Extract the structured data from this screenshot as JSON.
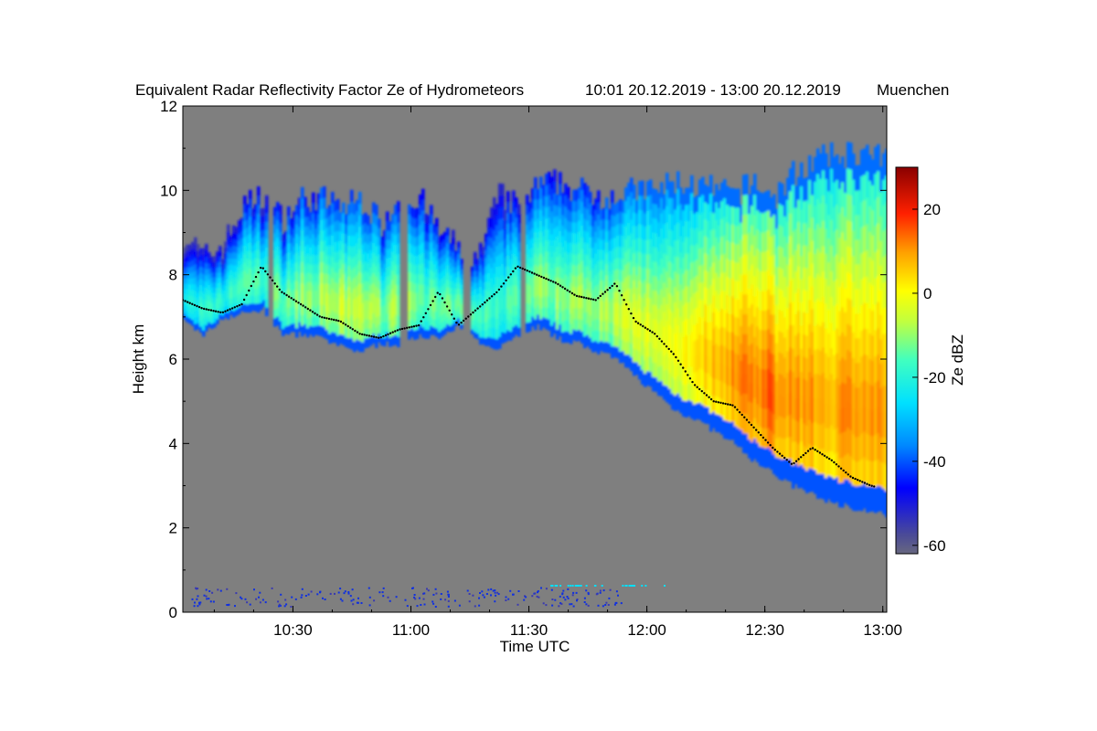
{
  "chart_data": {
    "type": "heatmap",
    "title": "Equivalent Radar Reflectivity Factor Ze of Hydrometeors",
    "time_range_label": "10:01 20.12.2019 - 13:00 20.12.2019",
    "location": "Muenchen",
    "xlabel": "Time UTC",
    "ylabel": "Height km",
    "x_ticks": [
      "10:30",
      "11:00",
      "11:30",
      "12:00",
      "12:30",
      "13:00"
    ],
    "x_tick_minutes": [
      629,
      659,
      689,
      719,
      749,
      779
    ],
    "xlim_minutes": [
      601,
      780
    ],
    "y_ticks": [
      "0",
      "2",
      "4",
      "6",
      "8",
      "10",
      "12"
    ],
    "y_tick_values": [
      0,
      2,
      4,
      6,
      8,
      10,
      12
    ],
    "ylim": [
      0,
      12
    ],
    "colorbar": {
      "label": "Ze dBZ",
      "ticks": [
        "20",
        "0",
        "-20",
        "-40",
        "-60"
      ],
      "tick_values": [
        20,
        0,
        -20,
        -40,
        -60
      ],
      "range": [
        -62,
        30
      ]
    },
    "cloud_profile_sample": {
      "time_minutes": [
        601,
        606,
        611,
        616,
        621,
        626,
        631,
        636,
        641,
        646,
        651,
        656,
        661,
        666,
        671,
        676,
        681,
        686,
        691,
        696,
        701,
        706,
        711,
        716,
        721,
        726,
        731,
        736,
        741,
        746,
        751,
        756,
        761,
        766,
        771,
        776,
        780
      ],
      "base_km": [
        6.9,
        6.6,
        7.0,
        7.1,
        7.2,
        6.6,
        6.6,
        6.5,
        6.3,
        6.2,
        6.4,
        6.3,
        6.6,
        6.5,
        6.8,
        6.4,
        6.3,
        6.6,
        6.8,
        6.5,
        6.4,
        6.2,
        6.0,
        5.6,
        5.2,
        4.8,
        4.6,
        4.3,
        4.0,
        3.6,
        3.3,
        3.0,
        2.8,
        2.6,
        2.5,
        2.4,
        2.3
      ],
      "top_km": [
        9.0,
        8.4,
        8.7,
        9.6,
        9.9,
        9.3,
        9.8,
        9.8,
        9.6,
        9.8,
        9.2,
        9.9,
        9.8,
        9.0,
        8.6,
        8.4,
        9.9,
        9.6,
        10.1,
        10.2,
        10.0,
        9.9,
        9.9,
        10.0,
        10.0,
        10.2,
        10.1,
        10.0,
        9.9,
        10.2,
        9.8,
        10.4,
        10.7,
        10.8,
        10.9,
        10.8,
        10.7
      ],
      "core_dbz": [
        -22,
        -18,
        -20,
        -14,
        -16,
        -12,
        -10,
        -8,
        -6,
        -6,
        -10,
        -8,
        -12,
        -14,
        -14,
        -16,
        -16,
        -14,
        -10,
        -10,
        -8,
        -8,
        -6,
        -4,
        -2,
        0,
        4,
        8,
        12,
        14,
        14,
        12,
        10,
        10,
        12,
        10,
        8
      ]
    },
    "zero_degree_line_km": [
      7.4,
      7.2,
      7.1,
      7.3,
      8.2,
      7.6,
      7.3,
      7.0,
      6.9,
      6.6,
      6.5,
      6.7,
      6.8,
      7.6,
      6.8,
      7.2,
      7.6,
      8.2,
      8.0,
      7.8,
      7.5,
      7.4,
      7.8,
      6.9,
      6.6,
      6.1,
      5.4,
      5.0,
      4.9,
      4.4,
      3.9,
      3.5,
      3.9,
      3.6,
      3.2,
      3.0,
      2.9
    ]
  }
}
